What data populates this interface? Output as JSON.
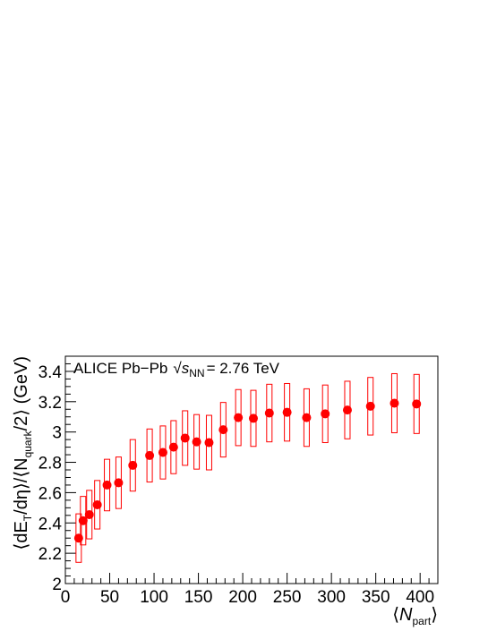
{
  "chart_data": {
    "type": "scatter",
    "annotation": {
      "prefix": "ALICE Pb−Pb",
      "sqrt_symbol": "√",
      "var": "s",
      "sub": "NN",
      "suffix": "= 2.76 TeV"
    },
    "xlabel": {
      "open": "⟨",
      "var": "N",
      "sub": "part",
      "close": "⟩"
    },
    "ylabel": {
      "part1": "⟨dE",
      "sub1": "T",
      "part2": "/dη⟩/⟨N",
      "sub2": "quark",
      "part3": "/2⟩ (GeV)"
    },
    "xlim": [
      0,
      420
    ],
    "ylim": [
      2.0,
      3.5
    ],
    "xticks": [
      0,
      50,
      100,
      150,
      200,
      250,
      300,
      350,
      400
    ],
    "xtick_labels": [
      "0",
      "50",
      "100",
      "150",
      "200",
      "250",
      "300",
      "350",
      "400"
    ],
    "yticks": [
      2.0,
      2.2,
      2.4,
      2.6,
      2.8,
      3.0,
      3.2,
      3.4
    ],
    "ytick_labels": [
      "2",
      "2.2",
      "2.4",
      "2.6",
      "2.8",
      "3",
      "3.2",
      "3.4"
    ],
    "grid": false,
    "colors": {
      "marker": "#ff0000",
      "sys_box": "#ff0000",
      "axis": "#000000"
    },
    "points": [
      {
        "x": 15,
        "y": 2.3,
        "sys": 0.16
      },
      {
        "x": 20,
        "y": 2.415,
        "sys": 0.16
      },
      {
        "x": 27,
        "y": 2.455,
        "sys": 0.16
      },
      {
        "x": 36,
        "y": 2.52,
        "sys": 0.16
      },
      {
        "x": 47,
        "y": 2.65,
        "sys": 0.17
      },
      {
        "x": 60,
        "y": 2.665,
        "sys": 0.17
      },
      {
        "x": 76,
        "y": 2.78,
        "sys": 0.17
      },
      {
        "x": 95,
        "y": 2.845,
        "sys": 0.175
      },
      {
        "x": 110,
        "y": 2.865,
        "sys": 0.175
      },
      {
        "x": 122,
        "y": 2.9,
        "sys": 0.175
      },
      {
        "x": 135,
        "y": 2.96,
        "sys": 0.18
      },
      {
        "x": 148,
        "y": 2.935,
        "sys": 0.18
      },
      {
        "x": 162,
        "y": 2.93,
        "sys": 0.18
      },
      {
        "x": 178,
        "y": 3.015,
        "sys": 0.18
      },
      {
        "x": 195,
        "y": 3.095,
        "sys": 0.185
      },
      {
        "x": 212,
        "y": 3.09,
        "sys": 0.185
      },
      {
        "x": 230,
        "y": 3.125,
        "sys": 0.19
      },
      {
        "x": 250,
        "y": 3.13,
        "sys": 0.19
      },
      {
        "x": 272,
        "y": 3.095,
        "sys": 0.19
      },
      {
        "x": 293,
        "y": 3.12,
        "sys": 0.19
      },
      {
        "x": 318,
        "y": 3.145,
        "sys": 0.19
      },
      {
        "x": 344,
        "y": 3.17,
        "sys": 0.19
      },
      {
        "x": 371,
        "y": 3.19,
        "sys": 0.195
      },
      {
        "x": 396,
        "y": 3.185,
        "sys": 0.195
      }
    ]
  }
}
